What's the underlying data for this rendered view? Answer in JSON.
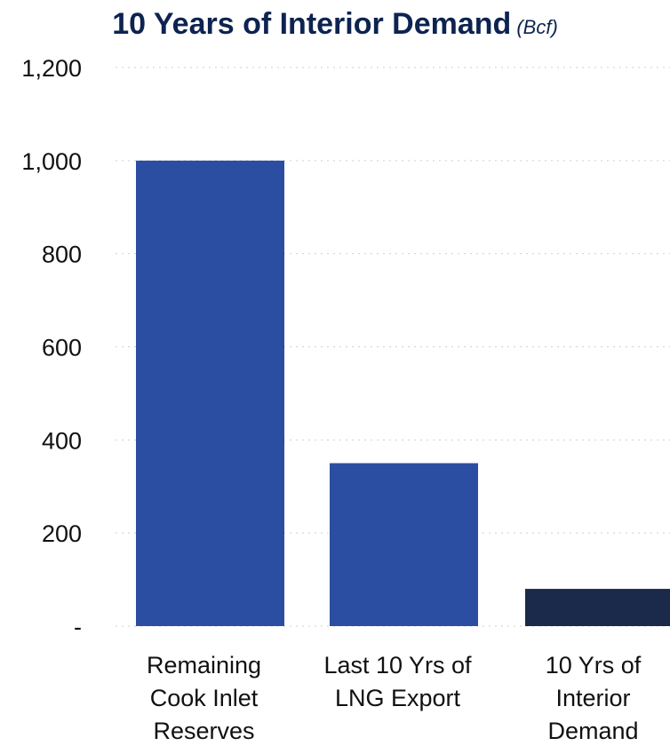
{
  "chart_data": {
    "type": "bar",
    "title": "10 Years of Interior Demand",
    "title_unit": "(Bcf)",
    "categories": [
      [
        "Remaining",
        "Cook Inlet",
        "Reserves"
      ],
      [
        "Last 10 Yrs of",
        "LNG Export"
      ],
      [
        "10 Yrs of",
        "Interior",
        "Demand"
      ]
    ],
    "values": [
      1000,
      350,
      80
    ],
    "bar_colors": [
      "#2b4ea3",
      "#2b4ea3",
      "#1b2a4a"
    ],
    "ylim": [
      0,
      1200
    ],
    "yticks": [
      0,
      200,
      400,
      600,
      800,
      1000,
      1200
    ],
    "ytick_labels": [
      "-",
      "200",
      "400",
      "600",
      "800",
      "1,000",
      "1,200"
    ],
    "grid": true,
    "xlabel": "",
    "ylabel": ""
  }
}
